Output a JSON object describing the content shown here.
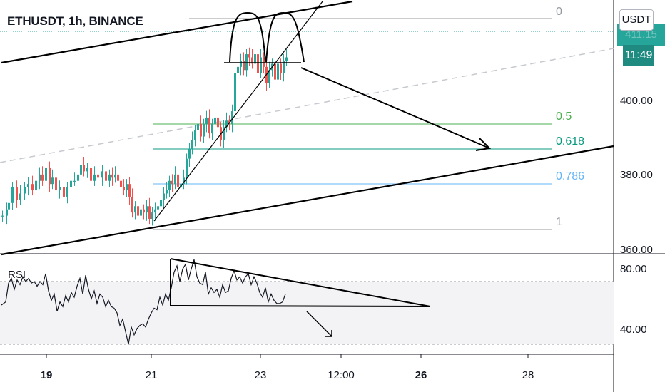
{
  "header": {
    "symbol_title": "ETHUSDT, 1h, BINANCE",
    "currency_button": "USDT"
  },
  "price_tag": {
    "last_price_partial": "411.15",
    "countdown": "11:49"
  },
  "price_axis": {
    "ticks": [
      "400.00",
      "380.00",
      "360.00"
    ]
  },
  "rsi_axis": {
    "ticks": [
      "80.00",
      "40.00"
    ]
  },
  "time_axis": {
    "ticks": [
      {
        "label": "19",
        "bold": true
      },
      {
        "label": "21",
        "bold": false
      },
      {
        "label": "23",
        "bold": false
      },
      {
        "label": "12:00",
        "bold": false
      },
      {
        "label": "26",
        "bold": true
      },
      {
        "label": "28",
        "bold": false
      }
    ]
  },
  "fib_levels": [
    {
      "label": "0",
      "color": "#9598a1"
    },
    {
      "label": "0.5",
      "color": "#4caf50"
    },
    {
      "label": "0.618",
      "color": "#089981"
    },
    {
      "label": "0.786",
      "color": "#64b5f6"
    },
    {
      "label": "1",
      "color": "#9598a1"
    }
  ],
  "rsi": {
    "label": "RSI",
    "upper_band": 70,
    "lower_band": 30
  },
  "colors": {
    "up": "#26a69a",
    "down": "#ef5350",
    "rsi_line": "#131722",
    "drawing": "#000000"
  },
  "chart_data": [
    {
      "type": "candlestick",
      "title": "ETHUSDT, 1h, BINANCE",
      "ylim": [
        358,
        426
      ],
      "price_points": [
        [
          0,
          368
        ],
        [
          6,
          370
        ],
        [
          9,
          372
        ],
        [
          14,
          377
        ],
        [
          20,
          373
        ],
        [
          25,
          375
        ],
        [
          31,
          377
        ],
        [
          36,
          378
        ],
        [
          42,
          376
        ],
        [
          47,
          379
        ],
        [
          52,
          381
        ],
        [
          56,
          379
        ],
        [
          61,
          383
        ],
        [
          66,
          378
        ],
        [
          70,
          380
        ],
        [
          75,
          376
        ],
        [
          80,
          377
        ],
        [
          86,
          374
        ],
        [
          91,
          377
        ],
        [
          96,
          379
        ],
        [
          101,
          379
        ],
        [
          106,
          381
        ],
        [
          110,
          384
        ],
        [
          114,
          382
        ],
        [
          119,
          383
        ],
        [
          124,
          379
        ],
        [
          129,
          381
        ],
        [
          134,
          380
        ],
        [
          140,
          382
        ],
        [
          145,
          379
        ],
        [
          150,
          381
        ],
        [
          154,
          380
        ],
        [
          158,
          381
        ],
        [
          162,
          379
        ],
        [
          166,
          377
        ],
        [
          170,
          376
        ],
        [
          174,
          378
        ],
        [
          178,
          374
        ],
        [
          182,
          369
        ],
        [
          186,
          371
        ],
        [
          190,
          368
        ],
        [
          194,
          370
        ],
        [
          198,
          369
        ],
        [
          202,
          371
        ],
        [
          206,
          367
        ],
        [
          210,
          369
        ],
        [
          214,
          370
        ],
        [
          218,
          371
        ],
        [
          222,
          373
        ],
        [
          226,
          375
        ],
        [
          230,
          376
        ],
        [
          234,
          379
        ],
        [
          238,
          378
        ],
        [
          242,
          381
        ],
        [
          246,
          377
        ],
        [
          250,
          378
        ],
        [
          254,
          380
        ],
        [
          258,
          386
        ],
        [
          262,
          389
        ],
        [
          266,
          392
        ],
        [
          270,
          395
        ],
        [
          274,
          397
        ],
        [
          278,
          393
        ],
        [
          282,
          397
        ],
        [
          286,
          399
        ],
        [
          290,
          394
        ],
        [
          294,
          397
        ],
        [
          298,
          399
        ],
        [
          302,
          396
        ],
        [
          306,
          392
        ],
        [
          310,
          396
        ],
        [
          314,
          398
        ],
        [
          318,
          397
        ],
        [
          322,
          401
        ],
        [
          326,
          413
        ],
        [
          330,
          415
        ],
        [
          334,
          417
        ],
        [
          338,
          414
        ],
        [
          342,
          419
        ],
        [
          346,
          418
        ],
        [
          350,
          416
        ],
        [
          354,
          419
        ],
        [
          358,
          413
        ],
        [
          362,
          418
        ],
        [
          366,
          415
        ],
        [
          370,
          410
        ],
        [
          374,
          414
        ],
        [
          378,
          416
        ],
        [
          382,
          411
        ],
        [
          386,
          416
        ],
        [
          390,
          413
        ],
        [
          394,
          417
        ],
        [
          398,
          418
        ]
      ]
    },
    {
      "type": "line",
      "title": "RSI",
      "ylim": [
        25,
        90
      ],
      "bands": [
        70,
        30
      ],
      "points": [
        [
          0,
          55
        ],
        [
          6,
          57
        ],
        [
          10,
          69
        ],
        [
          14,
          72
        ],
        [
          18,
          65
        ],
        [
          22,
          71
        ],
        [
          26,
          68
        ],
        [
          30,
          73
        ],
        [
          34,
          70
        ],
        [
          38,
          72
        ],
        [
          42,
          69
        ],
        [
          46,
          70
        ],
        [
          50,
          67
        ],
        [
          54,
          70
        ],
        [
          58,
          68
        ],
        [
          62,
          75
        ],
        [
          66,
          64
        ],
        [
          70,
          58
        ],
        [
          74,
          62
        ],
        [
          78,
          51
        ],
        [
          82,
          57
        ],
        [
          86,
          54
        ],
        [
          90,
          61
        ],
        [
          94,
          57
        ],
        [
          98,
          63
        ],
        [
          102,
          60
        ],
        [
          106,
          67
        ],
        [
          110,
          72
        ],
        [
          114,
          62
        ],
        [
          118,
          74
        ],
        [
          122,
          65
        ],
        [
          126,
          59
        ],
        [
          130,
          64
        ],
        [
          134,
          56
        ],
        [
          138,
          62
        ],
        [
          142,
          60
        ],
        [
          146,
          54
        ],
        [
          150,
          58
        ],
        [
          154,
          54
        ],
        [
          158,
          53
        ],
        [
          162,
          50
        ],
        [
          166,
          42
        ],
        [
          170,
          46
        ],
        [
          174,
          38
        ],
        [
          178,
          30
        ],
        [
          182,
          41
        ],
        [
          186,
          36
        ],
        [
          190,
          40
        ],
        [
          194,
          42
        ],
        [
          198,
          43
        ],
        [
          202,
          41
        ],
        [
          206,
          46
        ],
        [
          210,
          50
        ],
        [
          214,
          53
        ],
        [
          218,
          52
        ],
        [
          222,
          60
        ],
        [
          226,
          55
        ],
        [
          230,
          62
        ],
        [
          234,
          58
        ],
        [
          238,
          66
        ],
        [
          242,
          76
        ],
        [
          246,
          80
        ],
        [
          250,
          70
        ],
        [
          254,
          78
        ],
        [
          258,
          81
        ],
        [
          262,
          71
        ],
        [
          266,
          78
        ],
        [
          270,
          84
        ],
        [
          274,
          73
        ],
        [
          278,
          69
        ],
        [
          282,
          68
        ],
        [
          286,
          76
        ],
        [
          290,
          62
        ],
        [
          294,
          66
        ],
        [
          298,
          63
        ],
        [
          302,
          65
        ],
        [
          306,
          60
        ],
        [
          310,
          68
        ],
        [
          314,
          63
        ],
        [
          318,
          64
        ],
        [
          322,
          72
        ],
        [
          326,
          77
        ],
        [
          330,
          71
        ],
        [
          334,
          73
        ],
        [
          338,
          69
        ],
        [
          342,
          73
        ],
        [
          346,
          75
        ],
        [
          350,
          68
        ],
        [
          354,
          73
        ],
        [
          358,
          69
        ],
        [
          362,
          63
        ],
        [
          366,
          60
        ],
        [
          370,
          66
        ],
        [
          374,
          57
        ],
        [
          378,
          62
        ],
        [
          382,
          58
        ],
        [
          386,
          56
        ],
        [
          390,
          56
        ],
        [
          394,
          57
        ],
        [
          398,
          62
        ]
      ]
    }
  ]
}
